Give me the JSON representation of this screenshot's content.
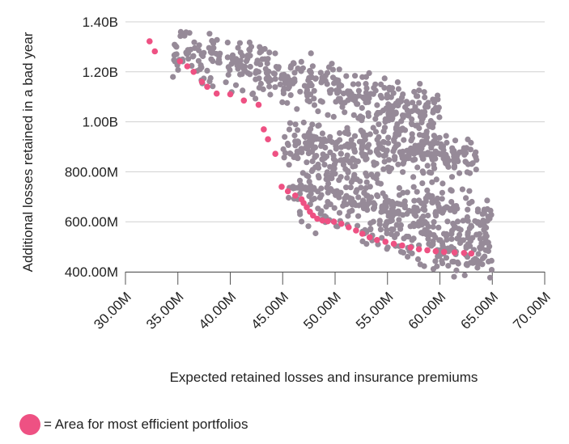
{
  "chart_data": {
    "type": "scatter",
    "xlabel": "Expected retained losses and insurance premiums",
    "ylabel": "Additional losses retained in a bad year",
    "xlim": [
      30000000,
      70000000
    ],
    "ylim": [
      400000000,
      1400000000
    ],
    "x_ticks": [
      "30.00M",
      "35.00M",
      "40.00M",
      "45.00M",
      "50.00M",
      "55.00M",
      "60.00M",
      "65.00M",
      "70.00M"
    ],
    "y_ticks": [
      "400.00M",
      "600.00M",
      "800.00M",
      "1.00B",
      "1.20B",
      "1.40B"
    ],
    "grid": "horizontal",
    "legend": {
      "label": "= Area for most efficient portfolios",
      "position": "bottom-left"
    },
    "colors": {
      "portfolio": "#968a98",
      "efficient": "#ee5183"
    },
    "efficient_frontier": [
      [
        32300000.0,
        1322000000.0
      ],
      [
        32800000.0,
        1282000000.0
      ],
      [
        35200000.0,
        1242000000.0
      ],
      [
        35900000.0,
        1222000000.0
      ],
      [
        36500000.0,
        1200000000.0
      ],
      [
        37300000.0,
        1160000000.0
      ],
      [
        37800000.0,
        1140000000.0
      ],
      [
        38700000.0,
        1113000000.0
      ],
      [
        40000000.0,
        1110000000.0
      ],
      [
        41300000.0,
        1085000000.0
      ],
      [
        42700000.0,
        1068000000.0
      ],
      [
        43200000.0,
        970000000.0
      ],
      [
        43600000.0,
        930000000.0
      ],
      [
        44300000.0,
        872000000.0
      ],
      [
        44900000.0,
        740000000.0
      ],
      [
        45500000.0,
        722000000.0
      ],
      [
        46200000.0,
        705000000.0
      ],
      [
        46800000.0,
        690000000.0
      ],
      [
        47000000.0,
        675000000.0
      ],
      [
        47300000.0,
        658000000.0
      ],
      [
        47600000.0,
        640000000.0
      ],
      [
        47900000.0,
        625000000.0
      ],
      [
        48300000.0,
        612000000.0
      ],
      [
        48800000.0,
        605000000.0
      ],
      [
        49300000.0,
        602000000.0
      ],
      [
        49900000.0,
        600000000.0
      ],
      [
        50600000.0,
        592000000.0
      ],
      [
        51300000.0,
        578000000.0
      ],
      [
        52000000.0,
        565000000.0
      ],
      [
        52600000.0,
        552000000.0
      ],
      [
        53300000.0,
        538000000.0
      ],
      [
        54000000.0,
        527000000.0
      ],
      [
        54800000.0,
        520000000.0
      ],
      [
        55600000.0,
        512000000.0
      ],
      [
        56400000.0,
        505000000.0
      ],
      [
        57200000.0,
        497000000.0
      ],
      [
        58000000.0,
        490000000.0
      ],
      [
        58800000.0,
        486000000.0
      ],
      [
        59600000.0,
        482000000.0
      ],
      [
        60400000.0,
        479000000.0
      ],
      [
        61400000.0,
        477000000.0
      ],
      [
        62300000.0,
        475000000.0
      ],
      [
        63000000.0,
        473000000.0
      ]
    ],
    "portfolio_clusters": [
      {
        "count": 430,
        "x_range": [
          34500000.0,
          60000000.0
        ],
        "y_at_x_start": 1300000000.0,
        "y_at_x_end": 1010000000.0,
        "y_spread": 130000000.0
      },
      {
        "count": 300,
        "x_range": [
          45000000.0,
          63500000.0
        ],
        "y_at_x_start": 930000000.0,
        "y_at_x_end": 850000000.0,
        "y_spread": 90000000.0
      },
      {
        "count": 520,
        "x_range": [
          45500000.0,
          65000000.0
        ],
        "y_at_x_start": 760000000.0,
        "y_at_x_end": 520000000.0,
        "y_spread": 200000000.0
      }
    ]
  }
}
